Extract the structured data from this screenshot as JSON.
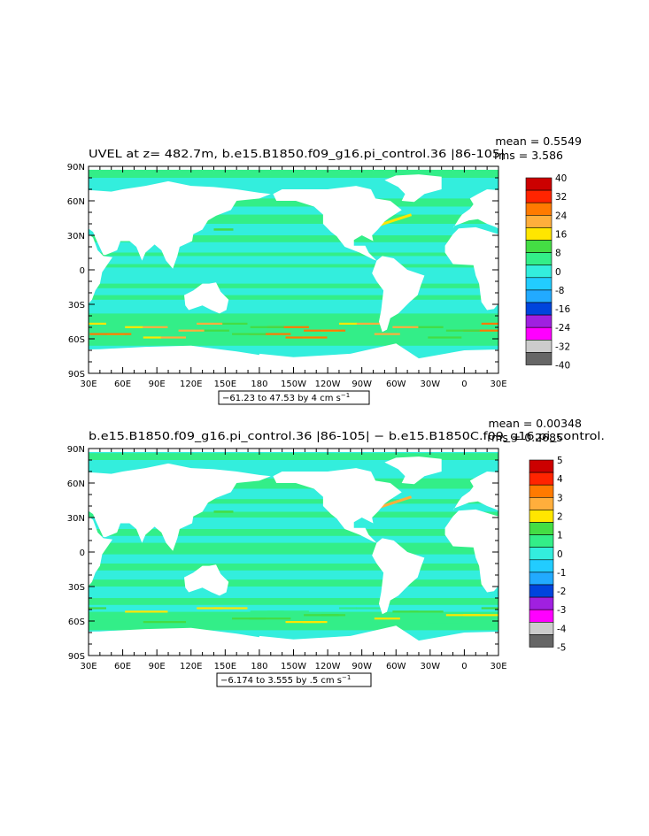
{
  "panels": [
    {
      "title": "UVEL at z= 482.7m, b.e15.B1850.f09_g16.pi_control.36 |86-105|",
      "mean_label": "mean = 0.5549",
      "rms_label": "rms = 3.586",
      "range_label": "−61.23 to 47.53 by 4 cm s",
      "range_exp": "−1",
      "colorbar_labels": [
        "40",
        "32",
        "24",
        "16",
        "8",
        "0",
        "-8",
        "-16",
        "-24",
        "-32",
        "-40"
      ]
    },
    {
      "title": "b.e15.B1850.f09_g16.pi_control.36 |86-105| − b.e15.B1850C.f09_g16.pi_control.",
      "mean_label": "mean = 0.00348",
      "rms_label": "rms = 0.2685",
      "range_label": "−6.174 to 3.555 by .5 cm s",
      "range_exp": "−1",
      "colorbar_labels": [
        "5",
        "4",
        "3",
        "2",
        "1",
        "0",
        "-1",
        "-2",
        "-3",
        "-4",
        "-5"
      ]
    }
  ],
  "axes": {
    "lat_labels": [
      "90N",
      "60N",
      "30N",
      "0",
      "30S",
      "60S",
      "90S"
    ],
    "lon_labels": [
      "30E",
      "60E",
      "90E",
      "120E",
      "150E",
      "180",
      "150W",
      "120W",
      "90W",
      "60W",
      "30W",
      "0",
      "30E"
    ]
  },
  "colors": {
    "colorbar": [
      "#cc0000",
      "#ff2400",
      "#ff7a00",
      "#ffae3c",
      "#ffe600",
      "#44dd44",
      "#33ee88",
      "#33eedd",
      "#22ccff",
      "#22aaff",
      "#0044dd",
      "#a020e0",
      "#ff00ff",
      "#cccccc",
      "#666666"
    ],
    "land": "#ffffff",
    "ocean_base": "#33eedd",
    "ocean_band": "#33ee88"
  }
}
